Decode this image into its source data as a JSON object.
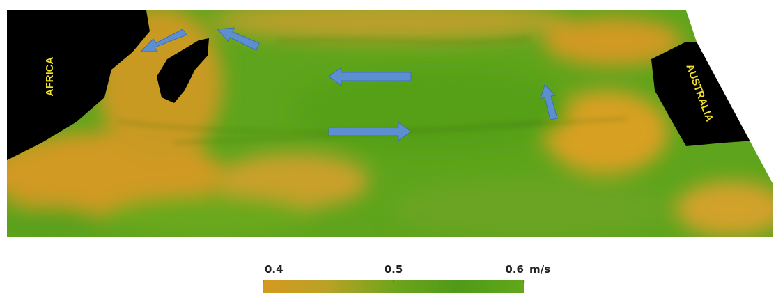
{
  "labels": {
    "africa": "AFRICA",
    "australia": "AUSTRALIA"
  },
  "colorbar": {
    "range": [
      0.4,
      0.6
    ],
    "ticks": [
      0.4,
      0.5,
      0.6
    ],
    "unit": "m/s",
    "colors": [
      "#d49a1e",
      "#b8a226",
      "#6fa41c",
      "#4f9a18",
      "#62a81a"
    ]
  }
}
